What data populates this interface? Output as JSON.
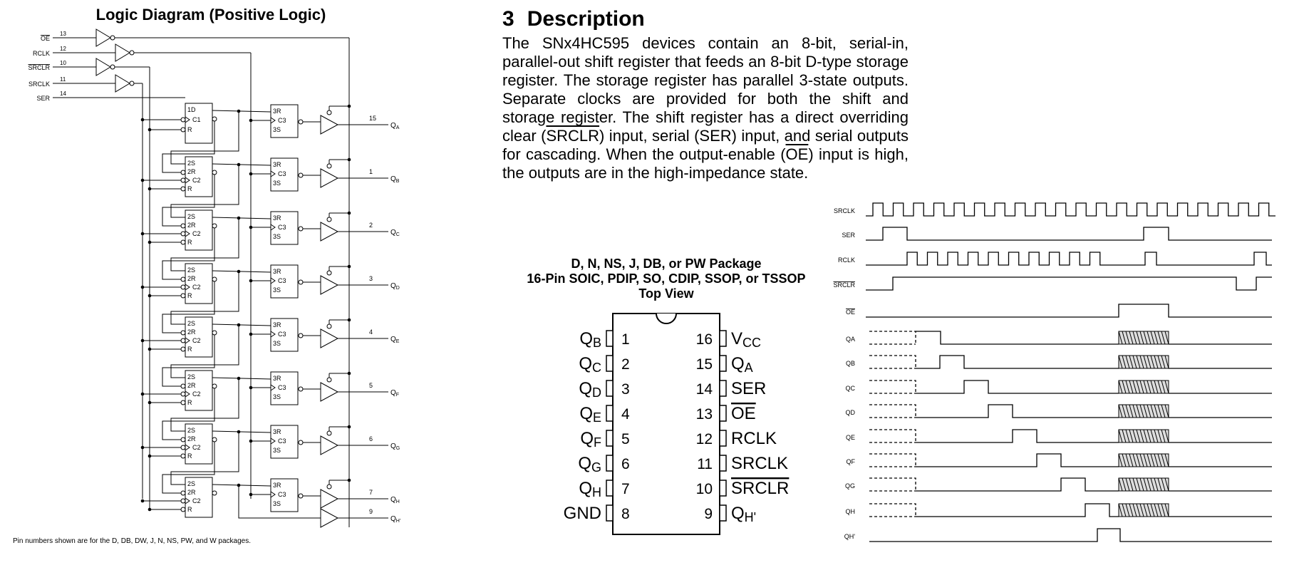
{
  "logic": {
    "title": "Logic Diagram (Positive Logic)",
    "footnote": "Pin numbers shown are for the D, DB, DW, J, N, NS, PW, and W packages.",
    "inputs": [
      {
        "label": "OE",
        "pin": "13",
        "overline": true
      },
      {
        "label": "RCLK",
        "pin": "12",
        "overline": false
      },
      {
        "label": "SRCLR",
        "pin": "10",
        "overline": true
      },
      {
        "label": "SRCLK",
        "pin": "11",
        "overline": false
      },
      {
        "label": "SER",
        "pin": "14",
        "overline": false
      }
    ],
    "first_shift_cell": [
      "1D",
      "C1",
      "R"
    ],
    "shift_cell": [
      "2S",
      "2R",
      "C2",
      "R"
    ],
    "storage_cell": [
      "3R",
      "C3",
      "3S"
    ],
    "outputs": [
      {
        "pin": "15",
        "label": "Q",
        "sub": "A"
      },
      {
        "pin": "1",
        "label": "Q",
        "sub": "B"
      },
      {
        "pin": "2",
        "label": "Q",
        "sub": "C"
      },
      {
        "pin": "3",
        "label": "Q",
        "sub": "D"
      },
      {
        "pin": "4",
        "label": "Q",
        "sub": "E"
      },
      {
        "pin": "5",
        "label": "Q",
        "sub": "F"
      },
      {
        "pin": "6",
        "label": "Q",
        "sub": "G"
      },
      {
        "pin": "7",
        "label": "Q",
        "sub": "H"
      },
      {
        "pin": "9",
        "label": "Q",
        "sub": "H'"
      }
    ]
  },
  "description": {
    "number": "3",
    "heading": "Description",
    "body": [
      {
        "t": "The SNx4HC595 devices contain an 8-bit, serial-in, parallel-out shift register that feeds an 8-bit D-type storage register. The storage register has parallel 3-state outputs. Separate clocks are provided for both the shift and storage register. The shift register has a direct overriding clear (",
        "o": false
      },
      {
        "t": "SRCLR",
        "o": true
      },
      {
        "t": ") input, serial (SER) input, and serial outputs for cascading. When the output-enable (",
        "o": false
      },
      {
        "t": "OE",
        "o": true
      },
      {
        "t": ") input is high, the outputs are in the high-impedance state.",
        "o": false
      }
    ]
  },
  "package": {
    "line1": "D, N, NS, J, DB, or PW Package",
    "line2": "16-Pin SOIC, PDIP, SO, CDIP, SSOP, or TSSOP",
    "line3": "Top View",
    "left_pins": [
      {
        "num": "1",
        "name": "Q",
        "sub": "B",
        "overline": false
      },
      {
        "num": "2",
        "name": "Q",
        "sub": "C",
        "overline": false
      },
      {
        "num": "3",
        "name": "Q",
        "sub": "D",
        "overline": false
      },
      {
        "num": "4",
        "name": "Q",
        "sub": "E",
        "overline": false
      },
      {
        "num": "5",
        "name": "Q",
        "sub": "F",
        "overline": false
      },
      {
        "num": "6",
        "name": "Q",
        "sub": "G",
        "overline": false
      },
      {
        "num": "7",
        "name": "Q",
        "sub": "H",
        "overline": false
      },
      {
        "num": "8",
        "name": "GND",
        "sub": "",
        "overline": false
      }
    ],
    "right_pins": [
      {
        "num": "16",
        "name": "V",
        "sub": "CC",
        "overline": false
      },
      {
        "num": "15",
        "name": "Q",
        "sub": "A",
        "overline": false
      },
      {
        "num": "14",
        "name": "SER",
        "sub": "",
        "overline": false
      },
      {
        "num": "13",
        "name": "OE",
        "sub": "",
        "overline": true
      },
      {
        "num": "12",
        "name": "RCLK",
        "sub": "",
        "overline": false
      },
      {
        "num": "11",
        "name": "SRCLK",
        "sub": "",
        "overline": false
      },
      {
        "num": "10",
        "name": "SRCLR",
        "sub": "",
        "overline": true
      },
      {
        "num": "9",
        "name": "Q",
        "sub": "H'",
        "overline": false
      }
    ]
  },
  "timing": {
    "signals": [
      {
        "label": "SRCLK",
        "overline": false,
        "kind": "clock"
      },
      {
        "label": "SER",
        "overline": false,
        "kind": "pulse"
      },
      {
        "label": "RCLK",
        "overline": false,
        "kind": "rclk"
      },
      {
        "label": "SRCLR",
        "overline": true,
        "kind": "srclr"
      },
      {
        "label": "OE",
        "overline": true,
        "kind": "oe"
      },
      {
        "label": "QA",
        "overline": false,
        "kind": "q",
        "q": 0
      },
      {
        "label": "QB",
        "overline": false,
        "kind": "q",
        "q": 1
      },
      {
        "label": "QC",
        "overline": false,
        "kind": "q",
        "q": 2
      },
      {
        "label": "QD",
        "overline": false,
        "kind": "q",
        "q": 3
      },
      {
        "label": "QE",
        "overline": false,
        "kind": "q",
        "q": 4
      },
      {
        "label": "QF",
        "overline": false,
        "kind": "q",
        "q": 5
      },
      {
        "label": "QG",
        "overline": false,
        "kind": "q",
        "q": 6
      },
      {
        "label": "QH",
        "overline": false,
        "kind": "q",
        "q": 7
      },
      {
        "label": "QH'",
        "overline": false,
        "kind": "qh2"
      }
    ]
  }
}
